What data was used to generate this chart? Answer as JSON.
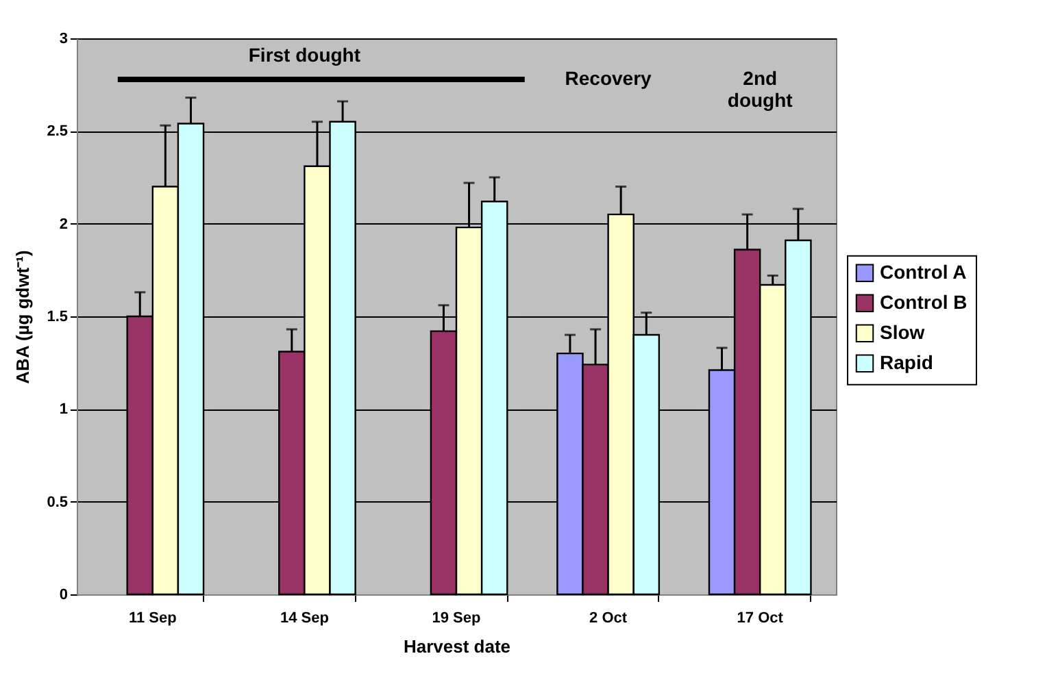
{
  "chart_data": {
    "type": "bar",
    "xlabel": "Harvest date",
    "ylabel": "ABA (µg gdwt⁻¹)",
    "categories": [
      "11 Sep",
      "14 Sep",
      "19 Sep",
      "2 Oct",
      "17 Oct"
    ],
    "series": [
      {
        "name": "Control A",
        "color": "#9999ff",
        "values": [
          null,
          null,
          null,
          1.3,
          1.21
        ],
        "errors": [
          null,
          null,
          null,
          [
            1.3,
            1.4
          ],
          [
            1.21,
            1.33
          ]
        ]
      },
      {
        "name": "Control B",
        "color": "#993366",
        "values": [
          1.5,
          1.31,
          1.42,
          1.24,
          1.86
        ],
        "errors": [
          [
            1.5,
            1.63
          ],
          [
            1.31,
            1.43
          ],
          [
            1.42,
            1.56
          ],
          [
            1.24,
            1.43
          ],
          [
            1.86,
            2.05
          ]
        ]
      },
      {
        "name": "Slow",
        "color": "#ffffcc",
        "values": [
          2.2,
          2.31,
          1.98,
          2.05,
          1.67
        ],
        "errors": [
          [
            2.2,
            2.53
          ],
          [
            2.31,
            2.55
          ],
          [
            1.98,
            2.22
          ],
          [
            2.05,
            2.2
          ],
          [
            1.67,
            1.72
          ]
        ]
      },
      {
        "name": "Rapid",
        "color": "#ccffff",
        "values": [
          2.54,
          2.55,
          2.12,
          1.4,
          1.91
        ],
        "errors": [
          [
            2.54,
            2.68
          ],
          [
            2.55,
            2.66
          ],
          [
            2.12,
            2.25
          ],
          [
            1.4,
            1.52
          ],
          [
            1.91,
            2.08
          ]
        ]
      }
    ],
    "ylim": [
      0,
      3
    ],
    "yticks": [
      0,
      0.5,
      1,
      1.5,
      2,
      2.5,
      3
    ],
    "grid": "y",
    "legend": "right",
    "annotations": [
      "First dought",
      "Recovery",
      "2nd\ndought"
    ]
  }
}
